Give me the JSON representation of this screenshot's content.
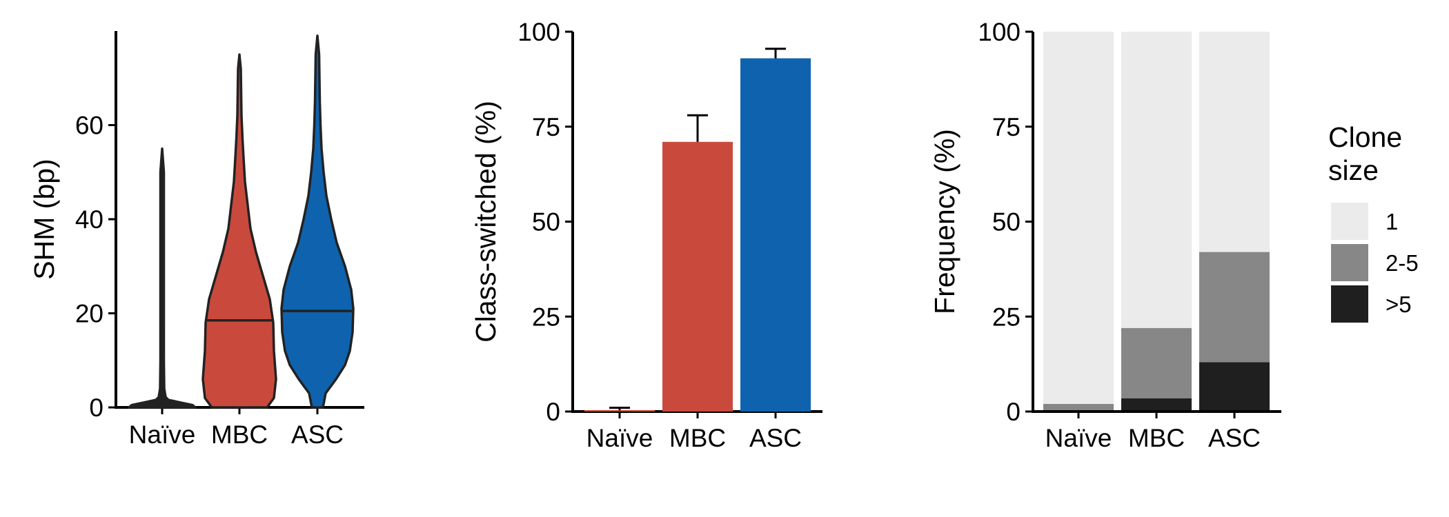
{
  "chart_data": [
    {
      "type": "violin",
      "ylabel": "SHM (bp)",
      "categories": [
        "Naïve",
        "MBC",
        "ASC"
      ],
      "yticks": [
        "0",
        "20",
        "40",
        "60"
      ],
      "ylim": [
        0,
        80
      ],
      "medians": [
        0,
        18.5,
        20.5
      ],
      "maxima": [
        55,
        75,
        79
      ],
      "colors": [
        "#222222",
        "#c94a3d",
        "#0f63ae"
      ]
    },
    {
      "type": "bar",
      "ylabel": "Class-switched (%)",
      "categories": [
        "Naïve",
        "MBC",
        "ASC"
      ],
      "yticks": [
        "0",
        "25",
        "50",
        "75",
        "100"
      ],
      "ylim": [
        0,
        100
      ],
      "values": [
        0.3,
        71,
        93
      ],
      "error_upper": [
        1,
        78,
        95.5
      ],
      "colors": [
        "#c94a3d",
        "#c94a3d",
        "#0f63ae"
      ]
    },
    {
      "type": "stacked_bar",
      "ylabel": "Frequency (%)",
      "categories": [
        "Naïve",
        "MBC",
        "ASC"
      ],
      "yticks": [
        "0",
        "25",
        "50",
        "75",
        "100"
      ],
      "ylim": [
        0,
        100
      ],
      "series": [
        {
          "name": ">5",
          "values": [
            0,
            3.5,
            13
          ],
          "color": "#1f1f1f"
        },
        {
          "name": "2-5",
          "values": [
            2,
            18.5,
            29
          ],
          "color": "#878787"
        },
        {
          "name": "1",
          "values": [
            98,
            78,
            58
          ],
          "color": "#ebebeb"
        }
      ],
      "legend": {
        "title": "Clone size",
        "title_lines": [
          "Clone",
          "size"
        ],
        "placement": "right"
      }
    }
  ]
}
